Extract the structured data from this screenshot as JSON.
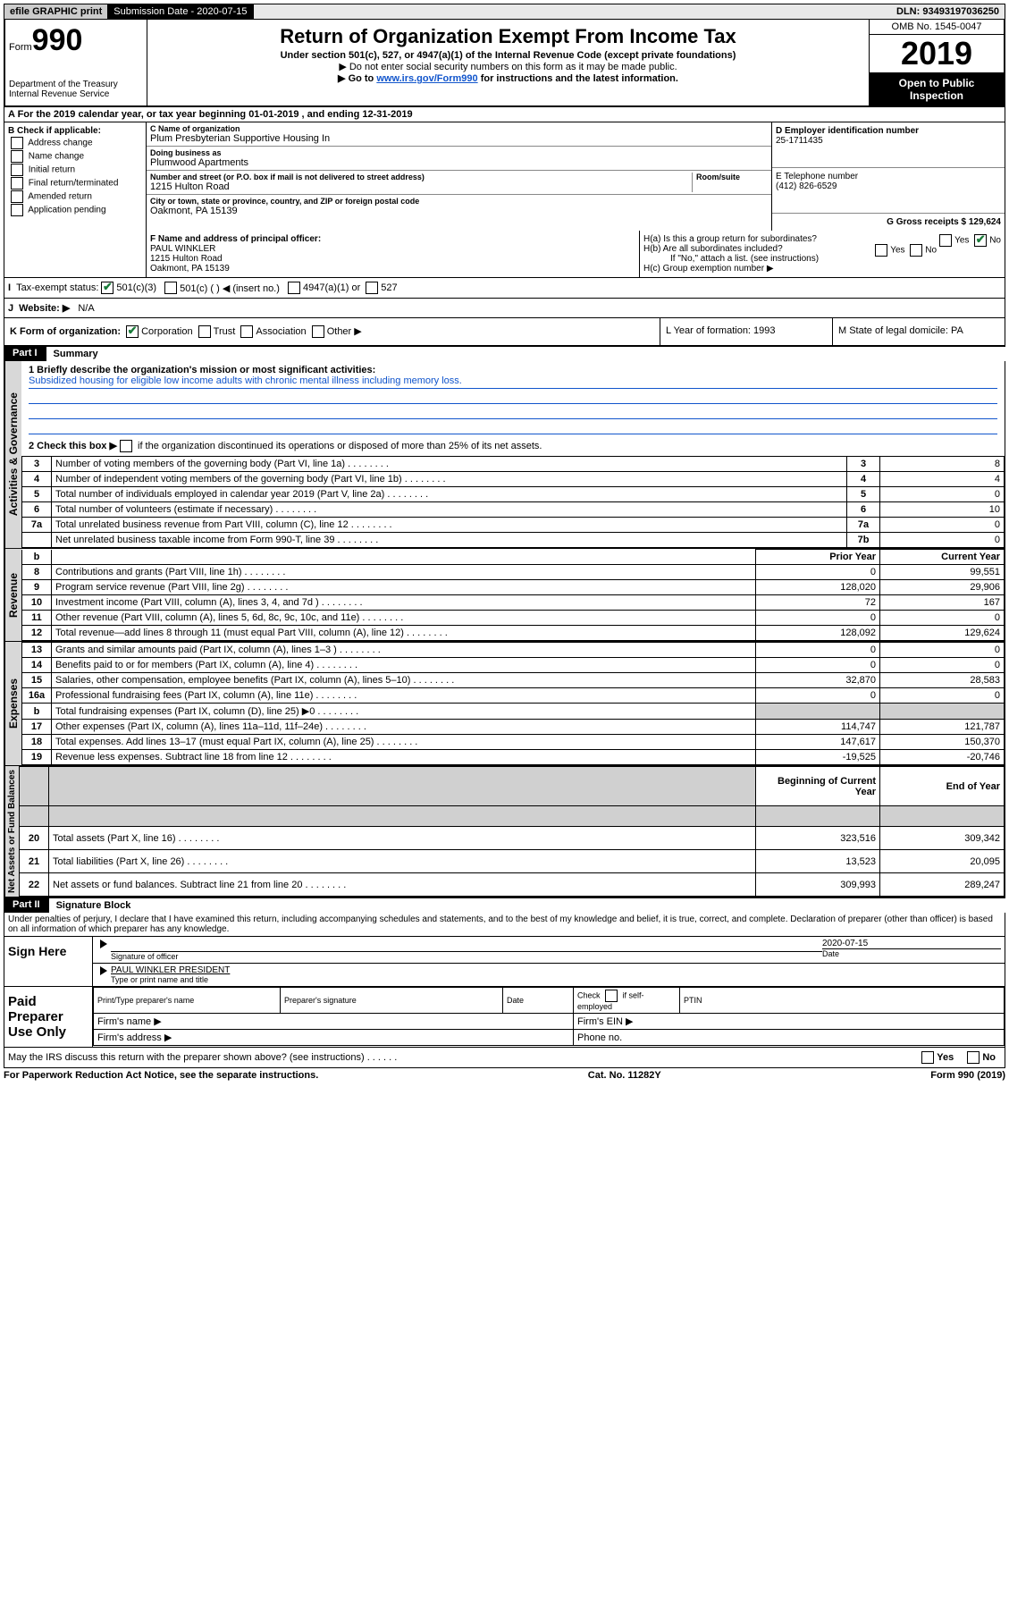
{
  "topbar": {
    "efile_label": "efile GRAPHIC print",
    "subdate_label": "Submission Date - 2020-07-15",
    "dln_label": "DLN: 93493197036250"
  },
  "header": {
    "form_prefix": "Form",
    "form_number": "990",
    "dept": "Department of the Treasury\nInternal Revenue Service",
    "title": "Return of Organization Exempt From Income Tax",
    "subtitle": "Under section 501(c), 527, or 4947(a)(1) of the Internal Revenue Code (except private foundations)",
    "note1": "▶ Do not enter social security numbers on this form as it may be made public.",
    "note2_pre": "▶ Go to ",
    "note2_link": "www.irs.gov/Form990",
    "note2_post": " for instructions and the latest information.",
    "omb": "OMB No. 1545-0047",
    "year": "2019",
    "inspect": "Open to Public Inspection"
  },
  "sectionA": "A For the 2019 calendar year, or tax year beginning 01-01-2019   , and ending 12-31-2019",
  "boxB": {
    "label": "B Check if applicable:",
    "items": [
      "Address change",
      "Name change",
      "Initial return",
      "Final return/terminated",
      "Amended return",
      "Application pending"
    ]
  },
  "boxC": {
    "name_label": "C Name of organization",
    "name": "Plum Presbyterian Supportive Housing In",
    "dba_label": "Doing business as",
    "dba": "Plumwood Apartments",
    "addr_label": "Number and street (or P.O. box if mail is not delivered to street address)",
    "room_label": "Room/suite",
    "addr": "1215 Hulton Road",
    "city_label": "City or town, state or province, country, and ZIP or foreign postal code",
    "city": "Oakmont, PA  15139"
  },
  "boxD": {
    "label": "D Employer identification number",
    "value": "25-1711435"
  },
  "boxE": {
    "label": "E Telephone number",
    "value": "(412) 826-6529"
  },
  "boxG": {
    "label": "G Gross receipts $ 129,624"
  },
  "boxF": {
    "label": "F  Name and address of principal officer:",
    "name": "PAUL WINKLER",
    "addr1": "1215 Hulton Road",
    "addr2": "Oakmont, PA  15139"
  },
  "boxH": {
    "ha": "H(a)  Is this a group return for subordinates?",
    "hb": "H(b)  Are all subordinates included?",
    "hb_note": "If \"No,\" attach a list. (see instructions)",
    "hc": "H(c)  Group exemption number ▶"
  },
  "lineI": {
    "label": "Tax-exempt status:",
    "opts": [
      "501(c)(3)",
      "501(c) (  ) ◀ (insert no.)",
      "4947(a)(1) or",
      "527"
    ]
  },
  "lineJ": {
    "label": "Website: ▶",
    "value": "N/A"
  },
  "lineK": {
    "label": "K Form of organization:",
    "opts": [
      "Corporation",
      "Trust",
      "Association",
      "Other ▶"
    ]
  },
  "lineL": {
    "label": "L Year of formation: 1993"
  },
  "lineM": {
    "label": "M State of legal domicile: PA"
  },
  "partI": {
    "num": "Part I",
    "title": "Summary"
  },
  "mission": {
    "q1": "1  Briefly describe the organization's mission or most significant activities:",
    "text": "Subsidized housing for eligible low income adults with chronic mental illness including memory loss.",
    "q2_pre": "2   Check this box ▶",
    "q2_post": " if the organization discontinued its operations or disposed of more than 25% of its net assets."
  },
  "governance_rows": [
    {
      "n": "3",
      "d": "Number of voting members of the governing body (Part VI, line 1a)",
      "sn": "3",
      "v": "8"
    },
    {
      "n": "4",
      "d": "Number of independent voting members of the governing body (Part VI, line 1b)",
      "sn": "4",
      "v": "4"
    },
    {
      "n": "5",
      "d": "Total number of individuals employed in calendar year 2019 (Part V, line 2a)",
      "sn": "5",
      "v": "0"
    },
    {
      "n": "6",
      "d": "Total number of volunteers (estimate if necessary)",
      "sn": "6",
      "v": "10"
    },
    {
      "n": "7a",
      "d": "Total unrelated business revenue from Part VIII, column (C), line 12",
      "sn": "7a",
      "v": "0"
    },
    {
      "n": "",
      "d": "Net unrelated business taxable income from Form 990-T, line 39",
      "sn": "7b",
      "v": "0"
    }
  ],
  "two_col_header": {
    "prior": "Prior Year",
    "current": "Current Year"
  },
  "revenue_rows": [
    {
      "n": "8",
      "d": "Contributions and grants (Part VIII, line 1h)",
      "p": "0",
      "c": "99,551"
    },
    {
      "n": "9",
      "d": "Program service revenue (Part VIII, line 2g)",
      "p": "128,020",
      "c": "29,906"
    },
    {
      "n": "10",
      "d": "Investment income (Part VIII, column (A), lines 3, 4, and 7d )",
      "p": "72",
      "c": "167"
    },
    {
      "n": "11",
      "d": "Other revenue (Part VIII, column (A), lines 5, 6d, 8c, 9c, 10c, and 11e)",
      "p": "0",
      "c": "0"
    },
    {
      "n": "12",
      "d": "Total revenue—add lines 8 through 11 (must equal Part VIII, column (A), line 12)",
      "p": "128,092",
      "c": "129,624"
    }
  ],
  "expense_rows": [
    {
      "n": "13",
      "d": "Grants and similar amounts paid (Part IX, column (A), lines 1–3 )",
      "p": "0",
      "c": "0"
    },
    {
      "n": "14",
      "d": "Benefits paid to or for members (Part IX, column (A), line 4)",
      "p": "0",
      "c": "0"
    },
    {
      "n": "15",
      "d": "Salaries, other compensation, employee benefits (Part IX, column (A), lines 5–10)",
      "p": "32,870",
      "c": "28,583"
    },
    {
      "n": "16a",
      "d": "Professional fundraising fees (Part IX, column (A), line 11e)",
      "p": "0",
      "c": "0"
    },
    {
      "n": "b",
      "d": "Total fundraising expenses (Part IX, column (D), line 25) ▶0",
      "p": "",
      "c": "",
      "shade": true
    },
    {
      "n": "17",
      "d": "Other expenses (Part IX, column (A), lines 11a–11d, 11f–24e)",
      "p": "114,747",
      "c": "121,787"
    },
    {
      "n": "18",
      "d": "Total expenses. Add lines 13–17 (must equal Part IX, column (A), line 25)",
      "p": "147,617",
      "c": "150,370"
    },
    {
      "n": "19",
      "d": "Revenue less expenses. Subtract line 18 from line 12",
      "p": "-19,525",
      "c": "-20,746"
    }
  ],
  "netassets_header": {
    "prior": "Beginning of Current Year",
    "current": "End of Year"
  },
  "netassets_rows": [
    {
      "n": "20",
      "d": "Total assets (Part X, line 16)",
      "p": "323,516",
      "c": "309,342"
    },
    {
      "n": "21",
      "d": "Total liabilities (Part X, line 26)",
      "p": "13,523",
      "c": "20,095"
    },
    {
      "n": "22",
      "d": "Net assets or fund balances. Subtract line 21 from line 20",
      "p": "309,993",
      "c": "289,247"
    }
  ],
  "vlabels": {
    "gov": "Activities & Governance",
    "rev": "Revenue",
    "exp": "Expenses",
    "net": "Net Assets or Fund Balances"
  },
  "partII": {
    "num": "Part II",
    "title": "Signature Block"
  },
  "perjury": "Under penalties of perjury, I declare that I have examined this return, including accompanying schedules and statements, and to the best of my knowledge and belief, it is true, correct, and complete. Declaration of preparer (other than officer) is based on all information of which preparer has any knowledge.",
  "sign": {
    "here": "Sign Here",
    "sig_label": "Signature of officer",
    "date": "2020-07-15",
    "date_label": "Date",
    "name": "PAUL WINKLER  PRESIDENT",
    "name_label": "Type or print name and title"
  },
  "paid": {
    "title": "Paid Preparer Use Only",
    "h1": "Print/Type preparer's name",
    "h2": "Preparer's signature",
    "h3": "Date",
    "h4_pre": "Check",
    "h4_post": "if self-employed",
    "h5": "PTIN",
    "firm_name": "Firm's name   ▶",
    "firm_ein": "Firm's EIN ▶",
    "firm_addr": "Firm's address ▶",
    "phone": "Phone no."
  },
  "discuss": "May the IRS discuss this return with the preparer shown above? (see instructions)",
  "footer": {
    "left": "For Paperwork Reduction Act Notice, see the separate instructions.",
    "mid": "Cat. No. 11282Y",
    "right": "Form 990 (2019)"
  },
  "yes": "Yes",
  "no": "No"
}
